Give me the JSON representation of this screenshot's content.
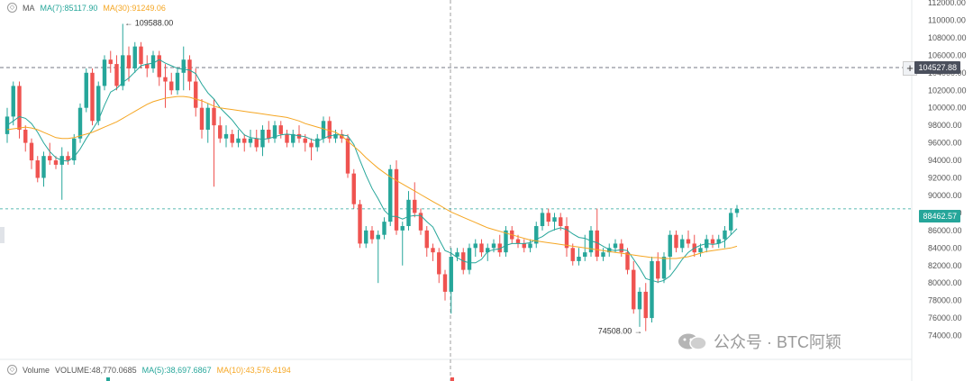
{
  "legend_top": {
    "indicator": "MA",
    "ma7": "MA(7):85117.90",
    "ma30": "MA(30):91249.06"
  },
  "legend_bottom": {
    "label": "Volume",
    "volume": "VOLUME:48,770.0685",
    "ma5": "MA(5):38,697.6867",
    "ma10": "MA(10):43,576.4194"
  },
  "crosshair_price": "104527.88",
  "last_price": "88462.57",
  "annotations": {
    "high": "109588.00",
    "low": "74508.00"
  },
  "watermark": "公众号 · BTC阿颖",
  "colors": {
    "up": "#26a69a",
    "down": "#ef5350",
    "ma7": "#26a69a",
    "ma30": "#f5a623",
    "last": "#26a69a",
    "crosshair": "#4a4f5c"
  },
  "chart_data": {
    "type": "candlestick",
    "ylim": [
      72000,
      112000
    ],
    "y_ticks": [
      "74000.00",
      "76000.00",
      "78000.00",
      "80000.00",
      "82000.00",
      "84000.00",
      "86000.00",
      "88000.00",
      "90000.00",
      "92000.00",
      "94000.00",
      "96000.00",
      "98000.00",
      "100000.00",
      "102000.00",
      "104000.00",
      "106000.00",
      "108000.00",
      "110000.00",
      "112000.00"
    ],
    "candles": [
      [
        97000,
        100000,
        96000,
        99000
      ],
      [
        99000,
        103000,
        98000,
        102500
      ],
      [
        102500,
        103000,
        96500,
        97500
      ],
      [
        97500,
        98000,
        95000,
        96000
      ],
      [
        96000,
        96500,
        93000,
        94000
      ],
      [
        94000,
        94500,
        91500,
        92000
      ],
      [
        92000,
        95000,
        91000,
        94500
      ],
      [
        94500,
        96000,
        93500,
        94000
      ],
      [
        94000,
        94500,
        93000,
        93500
      ],
      [
        93500,
        95500,
        89500,
        94500
      ],
      [
        94500,
        95000,
        93500,
        94000
      ],
      [
        94000,
        97000,
        93500,
        96500
      ],
      [
        96500,
        100500,
        96000,
        100000
      ],
      [
        100000,
        104500,
        99500,
        104000
      ],
      [
        104000,
        104500,
        98000,
        98500
      ],
      [
        98500,
        103000,
        98000,
        102500
      ],
      [
        102500,
        106000,
        102000,
        105500
      ],
      [
        105500,
        106500,
        104000,
        105000
      ],
      [
        105000,
        106000,
        102000,
        102500
      ],
      [
        102500,
        109588,
        102000,
        106000
      ],
      [
        106000,
        107000,
        103000,
        104500
      ],
      [
        104500,
        107500,
        104000,
        107000
      ],
      [
        107000,
        107500,
        104500,
        105000
      ],
      [
        105000,
        106000,
        103500,
        104500
      ],
      [
        104500,
        106500,
        104000,
        106000
      ],
      [
        106000,
        106500,
        102500,
        103500
      ],
      [
        103500,
        105000,
        100000,
        103000
      ],
      [
        103000,
        104000,
        101500,
        102000
      ],
      [
        102000,
        104500,
        101500,
        104000
      ],
      [
        104000,
        107000,
        102000,
        105500
      ],
      [
        105500,
        106000,
        102000,
        103000
      ],
      [
        103000,
        104500,
        99000,
        100000
      ],
      [
        100000,
        101000,
        96500,
        97500
      ],
      [
        97500,
        100500,
        96000,
        100000
      ],
      [
        100000,
        101000,
        91000,
        98000
      ],
      [
        98000,
        99000,
        96000,
        96500
      ],
      [
        96500,
        98000,
        95500,
        97000
      ],
      [
        97000,
        97500,
        95500,
        96000
      ],
      [
        96000,
        97500,
        95500,
        96500
      ],
      [
        96500,
        97000,
        95000,
        96000
      ],
      [
        96000,
        97500,
        95500,
        96500
      ],
      [
        96500,
        97500,
        95000,
        95500
      ],
      [
        95500,
        98000,
        94500,
        97500
      ],
      [
        97500,
        98500,
        96000,
        96500
      ],
      [
        96500,
        98500,
        96000,
        98000
      ],
      [
        98000,
        98500,
        96500,
        97000
      ],
      [
        97000,
        97500,
        95500,
        96000
      ],
      [
        96000,
        97500,
        95500,
        97000
      ],
      [
        97000,
        98000,
        96000,
        96500
      ],
      [
        96500,
        97000,
        95000,
        96000
      ],
      [
        96000,
        96500,
        94000,
        95500
      ],
      [
        95500,
        97000,
        95000,
        96500
      ],
      [
        96500,
        99000,
        96000,
        98500
      ],
      [
        98500,
        99000,
        96000,
        96500
      ],
      [
        96500,
        97500,
        96000,
        97000
      ],
      [
        97000,
        97500,
        96000,
        96500
      ],
      [
        96500,
        97000,
        92000,
        92500
      ],
      [
        92500,
        93000,
        88500,
        89000
      ],
      [
        89000,
        89500,
        84000,
        84500
      ],
      [
        84500,
        86500,
        84000,
        86000
      ],
      [
        86000,
        86500,
        84500,
        85000
      ],
      [
        85000,
        86000,
        80000,
        85500
      ],
      [
        85500,
        87500,
        85000,
        87000
      ],
      [
        87000,
        93500,
        86500,
        93000
      ],
      [
        93000,
        94000,
        85500,
        86000
      ],
      [
        86000,
        87000,
        82000,
        86500
      ],
      [
        86500,
        90500,
        86000,
        89500
      ],
      [
        89500,
        91500,
        87500,
        88000
      ],
      [
        88000,
        88500,
        85500,
        86000
      ],
      [
        86000,
        86500,
        83000,
        84000
      ],
      [
        84000,
        84500,
        82500,
        83500
      ],
      [
        83500,
        84000,
        80000,
        81000
      ],
      [
        81000,
        81500,
        78000,
        79000
      ],
      [
        79000,
        84000,
        76500,
        83000
      ],
      [
        83000,
        84000,
        82500,
        83500
      ],
      [
        83500,
        84000,
        81000,
        81500
      ],
      [
        81500,
        84500,
        81000,
        84000
      ],
      [
        84000,
        85000,
        83000,
        84500
      ],
      [
        84500,
        85000,
        83000,
        83500
      ],
      [
        83500,
        84500,
        82500,
        84000
      ],
      [
        84000,
        85000,
        83500,
        84500
      ],
      [
        84500,
        85500,
        83000,
        83500
      ],
      [
        83500,
        86500,
        83000,
        86000
      ],
      [
        86000,
        86500,
        84500,
        85000
      ],
      [
        85000,
        85500,
        84000,
        84500
      ],
      [
        84500,
        85000,
        83500,
        84000
      ],
      [
        84000,
        85000,
        83500,
        84500
      ],
      [
        84500,
        87000,
        84000,
        86500
      ],
      [
        86500,
        88500,
        86000,
        88000
      ],
      [
        88000,
        88500,
        86500,
        87000
      ],
      [
        87000,
        88000,
        86000,
        87500
      ],
      [
        87500,
        88000,
        86000,
        86500
      ],
      [
        86500,
        87500,
        83000,
        84000
      ],
      [
        84000,
        84500,
        82000,
        82500
      ],
      [
        82500,
        84000,
        82000,
        83000
      ],
      [
        83000,
        85500,
        82500,
        83500
      ],
      [
        83500,
        86500,
        83000,
        86000
      ],
      [
        86000,
        88500,
        82500,
        83000
      ],
      [
        83000,
        84000,
        82500,
        83500
      ],
      [
        83500,
        84500,
        83000,
        84000
      ],
      [
        84000,
        85000,
        83500,
        84500
      ],
      [
        84500,
        85000,
        83000,
        83500
      ],
      [
        83500,
        84000,
        81000,
        81500
      ],
      [
        81500,
        82500,
        76500,
        77000
      ],
      [
        77000,
        79500,
        75000,
        79000
      ],
      [
        79000,
        80000,
        74508,
        76000
      ],
      [
        76000,
        83000,
        75500,
        82500
      ],
      [
        82500,
        83500,
        80000,
        80500
      ],
      [
        80500,
        83500,
        80000,
        83000
      ],
      [
        83000,
        86000,
        81500,
        85500
      ],
      [
        85500,
        86000,
        83500,
        84000
      ],
      [
        84000,
        85500,
        83500,
        85000
      ],
      [
        85000,
        86000,
        84000,
        84500
      ],
      [
        84500,
        85500,
        83000,
        83500
      ],
      [
        83500,
        84500,
        83000,
        84000
      ],
      [
        84000,
        85500,
        83500,
        85000
      ],
      [
        85000,
        85500,
        84000,
        84500
      ],
      [
        84500,
        85500,
        84000,
        85000
      ],
      [
        85000,
        86500,
        84000,
        86000
      ],
      [
        86000,
        88500,
        85500,
        88000
      ],
      [
        88000,
        88900,
        87500,
        88462.57
      ]
    ],
    "series": [
      {
        "name": "MA(7)",
        "values": [
          98000,
          98500,
          99000,
          98800,
          98200,
          97200,
          96000,
          95000,
          94300,
          94000,
          93900,
          94400,
          95300,
          96500,
          97500,
          98600,
          100300,
          101800,
          102200,
          102900,
          103400,
          104100,
          104800,
          105000,
          105100,
          105500,
          105100,
          104800,
          104500,
          104400,
          104300,
          103900,
          102700,
          101700,
          101000,
          100000,
          99300,
          98600,
          97700,
          96900,
          96600,
          96500,
          96400,
          96500,
          96700,
          96900,
          97000,
          96900,
          96800,
          96700,
          96400,
          96200,
          96500,
          96800,
          96900,
          96900,
          96800,
          95800,
          94000,
          92300,
          90800,
          89600,
          88300,
          87600,
          87600,
          87300,
          87600,
          87700,
          87700,
          87000,
          86400,
          85000,
          83700,
          83400,
          82900,
          82500,
          82300,
          82300,
          82700,
          83600,
          83800,
          83900,
          84300,
          84500,
          84500,
          84500,
          84600,
          85000,
          85300,
          85800,
          86100,
          86300,
          86100,
          85600,
          85200,
          85100,
          84800,
          84600,
          84200,
          83800,
          83700,
          83800,
          83700,
          82700,
          81700,
          80500,
          80300,
          80100,
          80300,
          80800,
          81700,
          82700,
          83500,
          84000,
          84300,
          84500,
          84400,
          84500,
          84800,
          85500,
          86200
        ]
      },
      {
        "name": "MA(30)",
        "values": [
          97500,
          97600,
          97700,
          97800,
          97700,
          97500,
          97200,
          96900,
          96600,
          96500,
          96500,
          96600,
          96800,
          97000,
          97200,
          97500,
          97800,
          98100,
          98400,
          98800,
          99200,
          99600,
          100000,
          100400,
          100700,
          100900,
          101100,
          101200,
          101300,
          101300,
          101200,
          101000,
          100800,
          100500,
          100200,
          100000,
          99900,
          99800,
          99700,
          99600,
          99500,
          99400,
          99300,
          99200,
          99100,
          99000,
          98900,
          98700,
          98500,
          98200,
          98000,
          97800,
          97600,
          97400,
          97200,
          96800,
          96200,
          95600,
          95000,
          94300,
          93700,
          93100,
          92600,
          92100,
          91700,
          91300,
          90900,
          90500,
          90100,
          89700,
          89300,
          88900,
          88500,
          88100,
          87800,
          87500,
          87200,
          86900,
          86600,
          86300,
          86100,
          85900,
          85700,
          85500,
          85300,
          85100,
          84900,
          84800,
          84700,
          84600,
          84500,
          84400,
          84300,
          84200,
          84100,
          84000,
          83900,
          83800,
          83700,
          83600,
          83500,
          83400,
          83300,
          83200,
          83100,
          83000,
          82900,
          82900,
          82800,
          82800,
          82800,
          82900,
          83000,
          83200,
          83400,
          83600,
          83700,
          83800,
          83900,
          84000,
          84200
        ]
      }
    ]
  }
}
